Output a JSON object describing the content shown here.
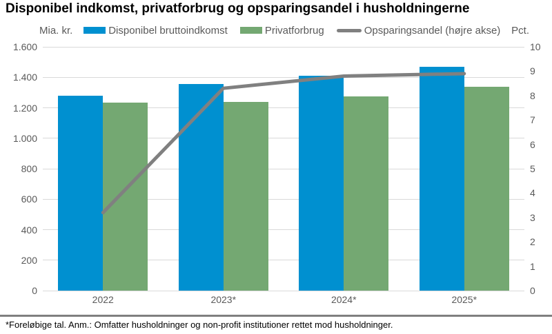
{
  "page": {
    "title": "Disponibel indkomst, privatforbrug og opsparingsandel i husholdningerne",
    "footnote": "*Foreløbige tal. Anm.: Omfatter husholdninger og non-profit institutioner rettet mod husholdninger."
  },
  "chart_data": {
    "type": "bar",
    "title": "Disponibel indkomst, privatforbrug og opsparingsandel i husholdningerne",
    "categories": [
      "2022",
      "2023*",
      "2024*",
      "2025*"
    ],
    "series": [
      {
        "name": "Disponibel bruttoindkomst",
        "type": "bar",
        "axis": "left",
        "color": "#0090d0",
        "values": [
          1280,
          1355,
          1410,
          1470
        ]
      },
      {
        "name": "Privatforbrug",
        "type": "bar",
        "axis": "left",
        "color": "#74a872",
        "values": [
          1235,
          1240,
          1275,
          1340
        ]
      },
      {
        "name": "Opsparingsandel (højre akse)",
        "type": "line",
        "axis": "right",
        "color": "#808080",
        "values": [
          3.2,
          8.3,
          8.8,
          8.9
        ]
      }
    ],
    "left_axis": {
      "label": "Mia. kr.",
      "min": 0,
      "max": 1600,
      "step": 200,
      "tick_labels": [
        "0",
        "200",
        "400",
        "600",
        "800",
        "1.000",
        "1.200",
        "1.400",
        "1.600"
      ]
    },
    "right_axis": {
      "label": "Pct.",
      "min": 0,
      "max": 10,
      "step": 1,
      "tick_labels": [
        "0",
        "1",
        "2",
        "3",
        "4",
        "5",
        "6",
        "7",
        "8",
        "9",
        "10"
      ]
    },
    "legend_position": "top",
    "grid": true,
    "gridline_color": "#d9d9d9",
    "text_color": "#595959"
  }
}
